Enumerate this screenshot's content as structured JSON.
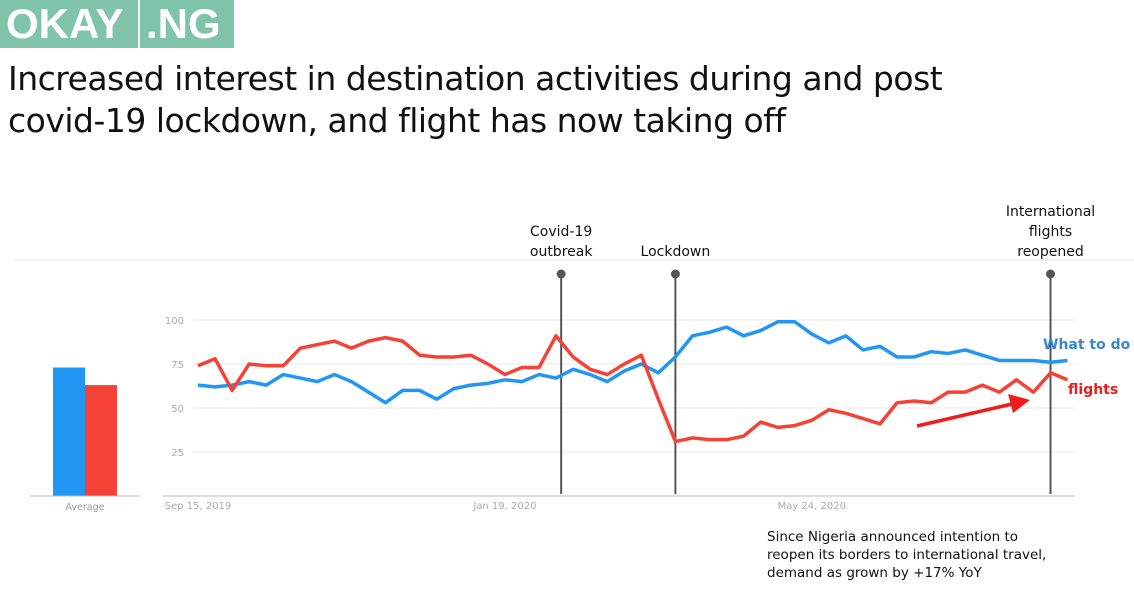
{
  "logo": {
    "part1": "OKAY",
    "part2": ".NG"
  },
  "title_line1": "Increased interest in destination activities during and post",
  "title_line2": "covid-19 lockdown, and flight has now taking off",
  "footnote": [
    "Since Nigeria announced intention to",
    "reopen its borders to international travel,",
    "demand as grown by +17% YoY"
  ],
  "chart_data": {
    "type": "line",
    "x_tick_labels": [
      "Sep 15, 2019",
      "Jan 19, 2020",
      "May 24, 2020"
    ],
    "x_tick_index": [
      0,
      18,
      36
    ],
    "y_ticks": [
      25,
      50,
      75,
      100
    ],
    "ylim": [
      0,
      100
    ],
    "grid": true,
    "colors": {
      "what_to_do": "#2196f3",
      "flights": "#f44336"
    },
    "series": [
      {
        "name": "What to do",
        "key": "what_to_do",
        "values": [
          63,
          62,
          63,
          65,
          63,
          69,
          67,
          65,
          69,
          65,
          59,
          53,
          60,
          60,
          55,
          61,
          63,
          64,
          66,
          65,
          69,
          67,
          72,
          69,
          65,
          71,
          75,
          70,
          79,
          91,
          93,
          96,
          91,
          94,
          99,
          99,
          92,
          87,
          91,
          83,
          85,
          79,
          79,
          82,
          81,
          83,
          80,
          77,
          77,
          77,
          76,
          77
        ]
      },
      {
        "name": "flights",
        "key": "flights",
        "values": [
          74,
          78,
          60,
          75,
          74,
          74,
          84,
          86,
          88,
          84,
          88,
          90,
          88,
          80,
          79,
          79,
          80,
          75,
          69,
          73,
          73,
          91,
          79,
          72,
          69,
          75,
          80,
          55,
          31,
          33,
          32,
          32,
          34,
          42,
          39,
          40,
          43,
          49,
          47,
          44,
          41,
          53,
          54,
          53,
          59,
          59,
          63,
          59,
          66,
          59,
          70,
          66
        ]
      }
    ],
    "average": {
      "label": "Average",
      "values": [
        73,
        63
      ]
    },
    "annotations": [
      {
        "lines": [
          "Covid-19",
          "outbreak"
        ],
        "index": 21.3
      },
      {
        "lines": [
          "Lockdown"
        ],
        "index": 28.0
      },
      {
        "lines": [
          "International",
          "flights",
          "reopened"
        ],
        "index": 50.0
      }
    ]
  }
}
